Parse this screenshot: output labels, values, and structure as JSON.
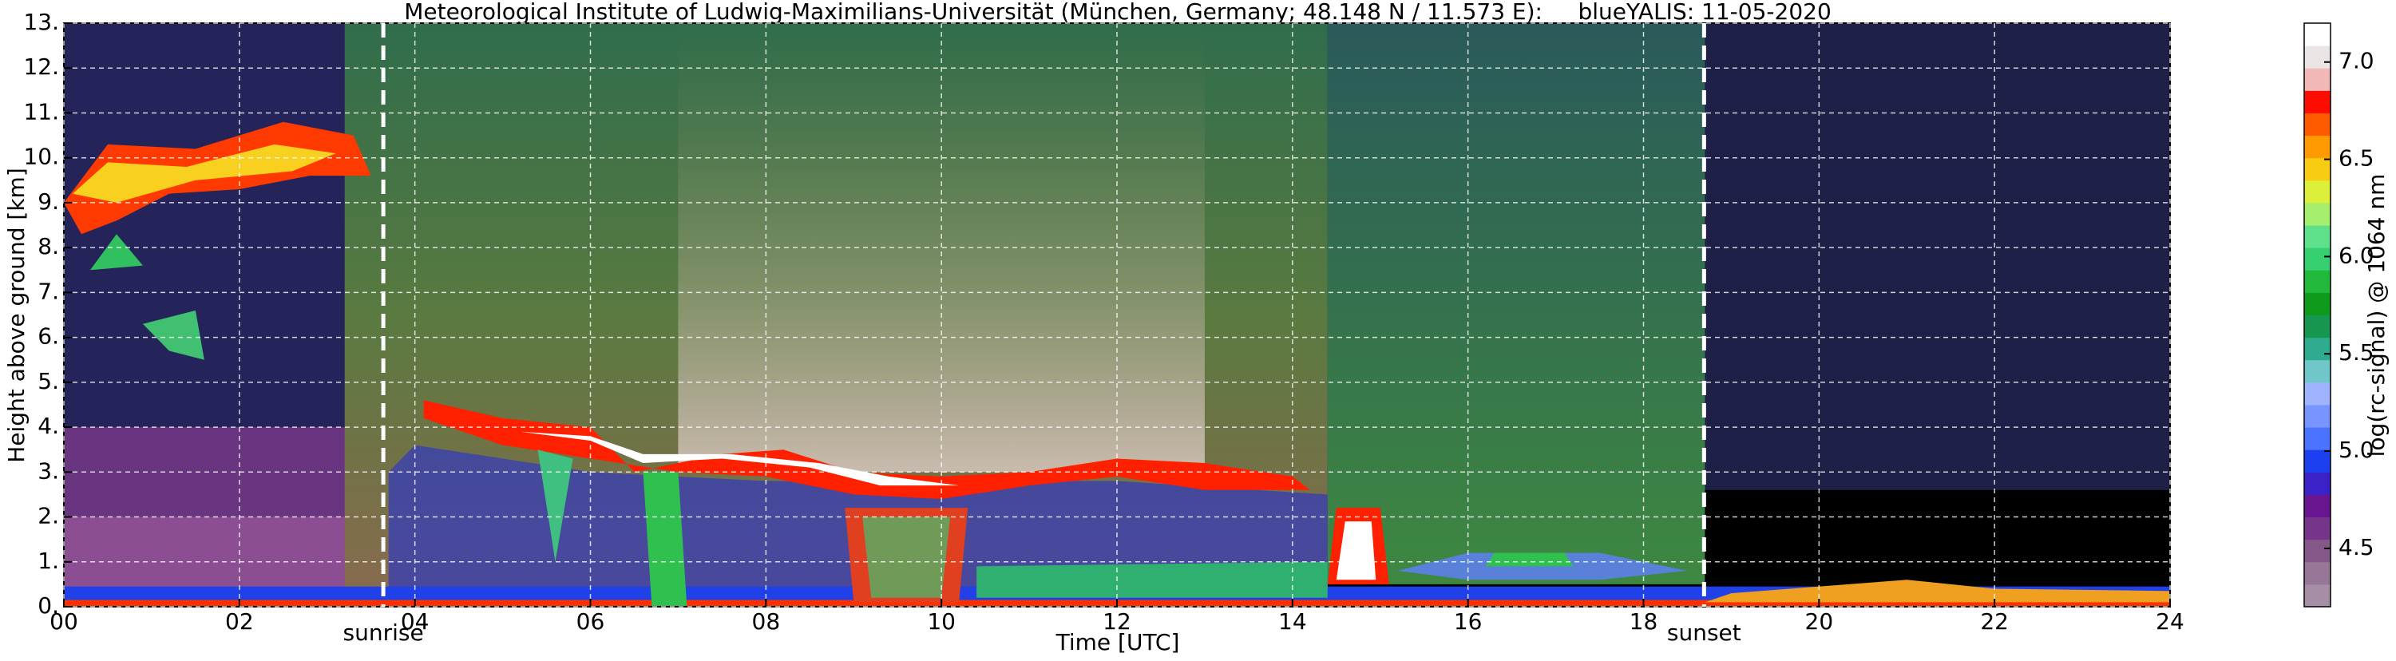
{
  "chart_data": {
    "type": "heatmap",
    "title": "Meteorological Institute of Ludwig-Maximilians-Universität (München, Germany; 48.148 N / 11.573 E):     blueYALIS: 11-05-2020",
    "xlabel": "Time [UTC]",
    "ylabel": "Height above ground [km]",
    "colorbar_label": "log(rc-signal) @ 1064 nm",
    "xlim": [
      0,
      24
    ],
    "ylim": [
      0,
      13
    ],
    "xticks": [
      {
        "value": 0,
        "label": "00"
      },
      {
        "value": 2,
        "label": "02"
      },
      {
        "value": 4,
        "label": "04"
      },
      {
        "value": 6,
        "label": "06"
      },
      {
        "value": 8,
        "label": "08"
      },
      10,
      12,
      14,
      16,
      18,
      20,
      22,
      24
    ],
    "yticks": [
      {
        "value": 0,
        "label": "0."
      },
      {
        "value": 1,
        "label": "1."
      },
      {
        "value": 2,
        "label": "2."
      },
      {
        "value": 3,
        "label": "3."
      },
      {
        "value": 4,
        "label": "4."
      },
      {
        "value": 5,
        "label": "5."
      },
      {
        "value": 6,
        "label": "6."
      },
      {
        "value": 7,
        "label": "7."
      },
      {
        "value": 8,
        "label": "8."
      },
      {
        "value": 9,
        "label": "9."
      },
      {
        "value": 10,
        "label": "10."
      },
      {
        "value": 11,
        "label": "11."
      },
      {
        "value": 12,
        "label": "12."
      },
      {
        "value": 13,
        "label": "13."
      }
    ],
    "grid": true,
    "annotations": [
      {
        "text": "sunrise",
        "x": 3.64
      },
      {
        "text": "sunset",
        "x": 18.69
      }
    ],
    "clim": [
      4.2,
      7.2
    ],
    "cticks": [
      4.5,
      {
        "value": 5.0,
        "label": "5.0"
      },
      5.5,
      {
        "value": 6.0,
        "label": "6.0"
      },
      6.5,
      {
        "value": 7.0,
        "label": "7.0"
      }
    ],
    "colormap": [
      "#a68ea6",
      "#977797",
      "#86588a",
      "#76358a",
      "#6a1590",
      "#3a22c8",
      "#1c40f0",
      "#4a74ff",
      "#7894ff",
      "#9fb3ff",
      "#6fc7c7",
      "#30ab90",
      "#179650",
      "#109a1c",
      "#22b83c",
      "#36d070",
      "#5ee08c",
      "#a6ee6e",
      "#dcf03a",
      "#f8cc10",
      "#ff9a00",
      "#ff5a00",
      "#ff0c00",
      "#f2b8b8",
      "#eae4e4",
      "#ffffff"
    ]
  }
}
